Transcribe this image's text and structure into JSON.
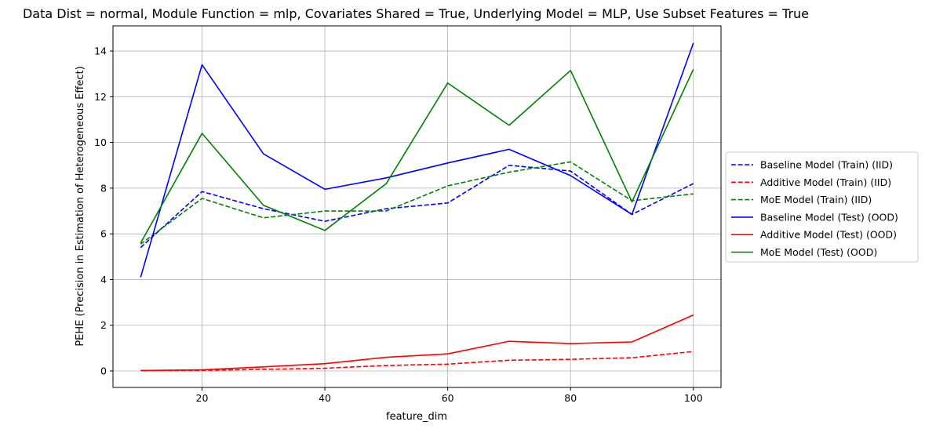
{
  "chart_data": {
    "type": "line",
    "title": "Data Dist = normal, Module Function = mlp, Covariates Shared = True, Underlying Model = MLP, Use Subset Features = True",
    "xlabel": "feature_dim",
    "ylabel": "PEHE (Precision in Estimation of Heterogeneous Effect)",
    "xlim": [
      5.5,
      104.5
    ],
    "ylim": [
      -0.72,
      15.1
    ],
    "xticks": [
      20,
      40,
      60,
      80,
      100
    ],
    "yticks": [
      0,
      2,
      4,
      6,
      8,
      10,
      12,
      14
    ],
    "grid": true,
    "legend_position": "right-outside",
    "x": [
      10,
      20,
      30,
      40,
      50,
      60,
      70,
      80,
      90,
      100
    ],
    "series": [
      {
        "name": "Baseline Model (Train) (IID)",
        "color": "#0000ff",
        "style": "dashed",
        "values": [
          5.4,
          7.85,
          7.1,
          6.55,
          7.1,
          7.35,
          9.0,
          8.75,
          6.85,
          8.2
        ]
      },
      {
        "name": "Additive Model (Train) (IID)",
        "color": "#ff0000",
        "style": "dashed",
        "values": [
          0.02,
          0.03,
          0.07,
          0.12,
          0.24,
          0.3,
          0.47,
          0.51,
          0.58,
          0.85
        ]
      },
      {
        "name": "MoE Model (Train) (IID)",
        "color": "#008000",
        "style": "dashed",
        "values": [
          5.55,
          7.55,
          6.7,
          7.0,
          7.0,
          8.1,
          8.7,
          9.15,
          7.45,
          7.75
        ]
      },
      {
        "name": "Baseline Model (Test) (OOD)",
        "color": "#0000ff",
        "style": "solid",
        "values": [
          4.1,
          13.4,
          9.5,
          7.95,
          8.45,
          9.1,
          9.7,
          8.55,
          6.85,
          14.35
        ]
      },
      {
        "name": "Additive Model (Test) (OOD)",
        "color": "#ff0000",
        "style": "solid",
        "values": [
          0.02,
          0.05,
          0.18,
          0.32,
          0.6,
          0.75,
          1.3,
          1.2,
          1.27,
          2.45
        ]
      },
      {
        "name": "MoE Model (Test) (OOD)",
        "color": "#008000",
        "style": "solid",
        "values": [
          5.6,
          10.4,
          7.25,
          6.15,
          8.2,
          12.6,
          10.75,
          13.15,
          7.4,
          13.2
        ]
      }
    ]
  }
}
